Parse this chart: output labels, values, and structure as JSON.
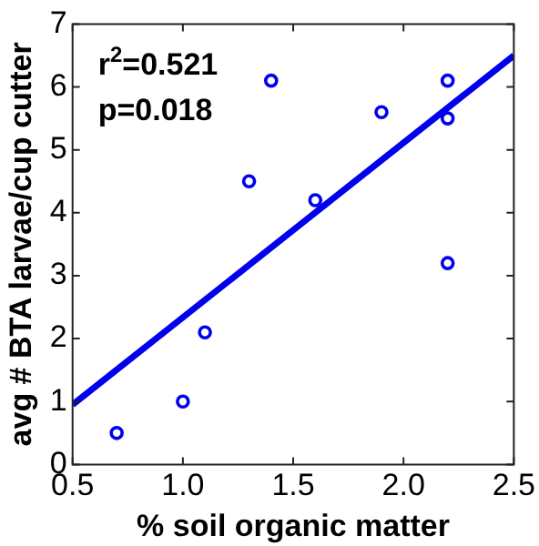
{
  "chart_data": {
    "type": "scatter",
    "xlabel": "% soil organic matter",
    "ylabel": "avg # BTA larvae/cup cutter",
    "xlim": [
      0.5,
      2.5
    ],
    "xticks": [
      0.5,
      {
        "value": 1,
        "label": "1.0"
      },
      1.5,
      {
        "value": 2,
        "label": "2.0"
      },
      2.5
    ],
    "ylim": [
      0,
      7
    ],
    "yticks": [
      0,
      1,
      2,
      3,
      4,
      5,
      6,
      7
    ],
    "marker": "circle",
    "series": [
      {
        "color": "#0000ee",
        "x": [
          0.7,
          1.0,
          1.1,
          1.3,
          1.4,
          1.6,
          1.9,
          2.2,
          2.2,
          2.2
        ],
        "values": [
          0.5,
          1.0,
          2.1,
          4.5,
          6.1,
          4.2,
          5.6,
          6.1,
          5.5,
          3.2
        ]
      },
      {
        "type": "line",
        "marker": "none",
        "color": "#0000ee",
        "x": [
          0.5,
          2.5
        ],
        "values": [
          0.95,
          6.5
        ]
      }
    ],
    "annotations": [
      "r$^{2}$=0.521",
      "p=0.018"
    ]
  }
}
